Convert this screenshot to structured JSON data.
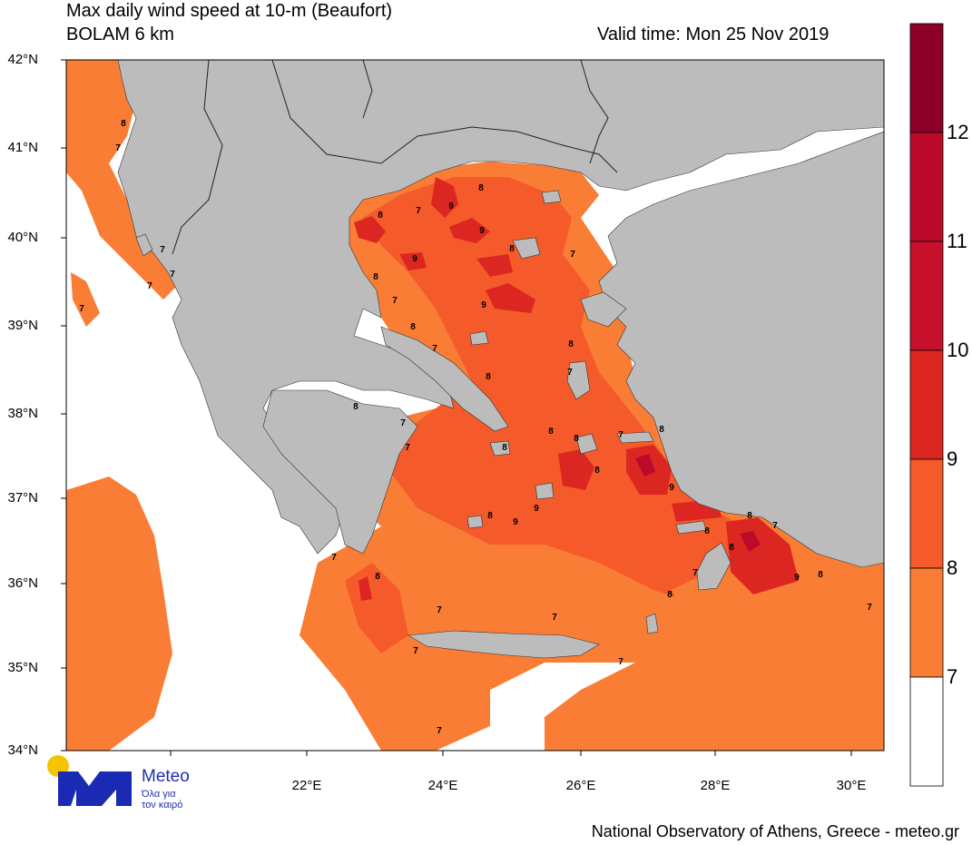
{
  "header": {
    "title_line1": "Max daily wind speed at 10-m (Beaufort)",
    "title_line2": "BOLAM 6 km",
    "valid_time": "Valid time: Mon 25 Nov 2019"
  },
  "axes": {
    "latitude_ticks": [
      "42°N",
      "41°N",
      "40°N",
      "39°N",
      "38°N",
      "37°N",
      "36°N",
      "35°N",
      "34°N"
    ],
    "longitude_ticks": [
      "22°E",
      "24°E",
      "26°E",
      "28°E",
      "30°E"
    ]
  },
  "colorbar": {
    "levels": [
      "7",
      "8",
      "9",
      "10",
      "11",
      "12"
    ],
    "colors": [
      "#ffffff",
      "#fa7d35",
      "#f45a2a",
      "#db2621",
      "#bc0a2a",
      "#8c0027"
    ]
  },
  "map_colors": {
    "land": "#bcbcbc",
    "sea_calm": "#ffffff",
    "beaufort_7_8": "#fa7d35",
    "beaufort_8_9": "#f45a2a",
    "beaufort_9_10": "#db2621"
  },
  "contour_labels": [
    "8",
    "7",
    "7",
    "7",
    "7",
    "7",
    "8",
    "7",
    "9",
    "8",
    "9",
    "8",
    "7",
    "9",
    "8",
    "9",
    "7",
    "8",
    "8",
    "7",
    "8",
    "7",
    "8",
    "7",
    "7",
    "8",
    "8",
    "8",
    "7",
    "8",
    "8",
    "9",
    "8",
    "9",
    "9",
    "8",
    "7",
    "8",
    "9",
    "8",
    "7",
    "8",
    "7",
    "8",
    "8",
    "7",
    "7",
    "7",
    "7",
    "7",
    "7"
  ],
  "logo": {
    "name": "Meteo",
    "tagline_line1": "Όλα για",
    "tagline_line2": "τον καιρό"
  },
  "footer": "National Observatory of Athens, Greece - meteo.gr"
}
